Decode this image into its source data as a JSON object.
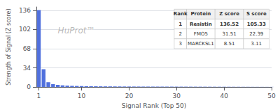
{
  "chart_data": {
    "type": "bar",
    "xlabel": "Signal Rank (Top 50)",
    "ylabel": "Strength of Signal (Z score)",
    "x": [
      1,
      2,
      3,
      4,
      5,
      6,
      7,
      8,
      9,
      10,
      11,
      12,
      13,
      14,
      15,
      16,
      17,
      18,
      19,
      20,
      21,
      22,
      23,
      24,
      25,
      26,
      27,
      28,
      29,
      30,
      31,
      32,
      33,
      34,
      35,
      36,
      37,
      38,
      39,
      40,
      41,
      42,
      43,
      44,
      45,
      46,
      47,
      48,
      49,
      50
    ],
    "values": [
      136.52,
      31.51,
      8.51,
      5.2,
      3.8,
      3.0,
      2.5,
      2.1,
      1.9,
      1.7,
      1.5,
      1.4,
      1.3,
      1.2,
      1.15,
      1.1,
      1.05,
      1.0,
      0.95,
      0.9,
      0.88,
      0.85,
      0.82,
      0.8,
      0.78,
      0.76,
      0.74,
      0.72,
      0.7,
      0.68,
      0.66,
      0.64,
      0.62,
      0.6,
      0.58,
      0.56,
      0.54,
      0.52,
      0.5,
      0.48,
      0.46,
      0.44,
      0.42,
      0.4,
      0.38,
      0.36,
      0.34,
      0.32,
      0.3,
      0.28
    ],
    "xlim": [
      0.5,
      50
    ],
    "ylim": [
      0,
      142
    ],
    "xticks": [
      1,
      10,
      20,
      30,
      40,
      50
    ],
    "yticks": [
      0,
      34,
      68,
      102,
      136
    ],
    "grid": true,
    "annotations": [
      {
        "text": "HuProt™",
        "x": 5,
        "y": 100
      }
    ],
    "table": {
      "columns": [
        "Rank",
        "Protein",
        "Z score",
        "S score"
      ],
      "rows": [
        [
          "1",
          "Resistin",
          "136.52",
          "105.33"
        ],
        [
          "2",
          "FMO5",
          "31.51",
          "22.39"
        ],
        [
          "3",
          "MARCKSL1",
          "8.51",
          "3.11"
        ]
      ]
    }
  }
}
